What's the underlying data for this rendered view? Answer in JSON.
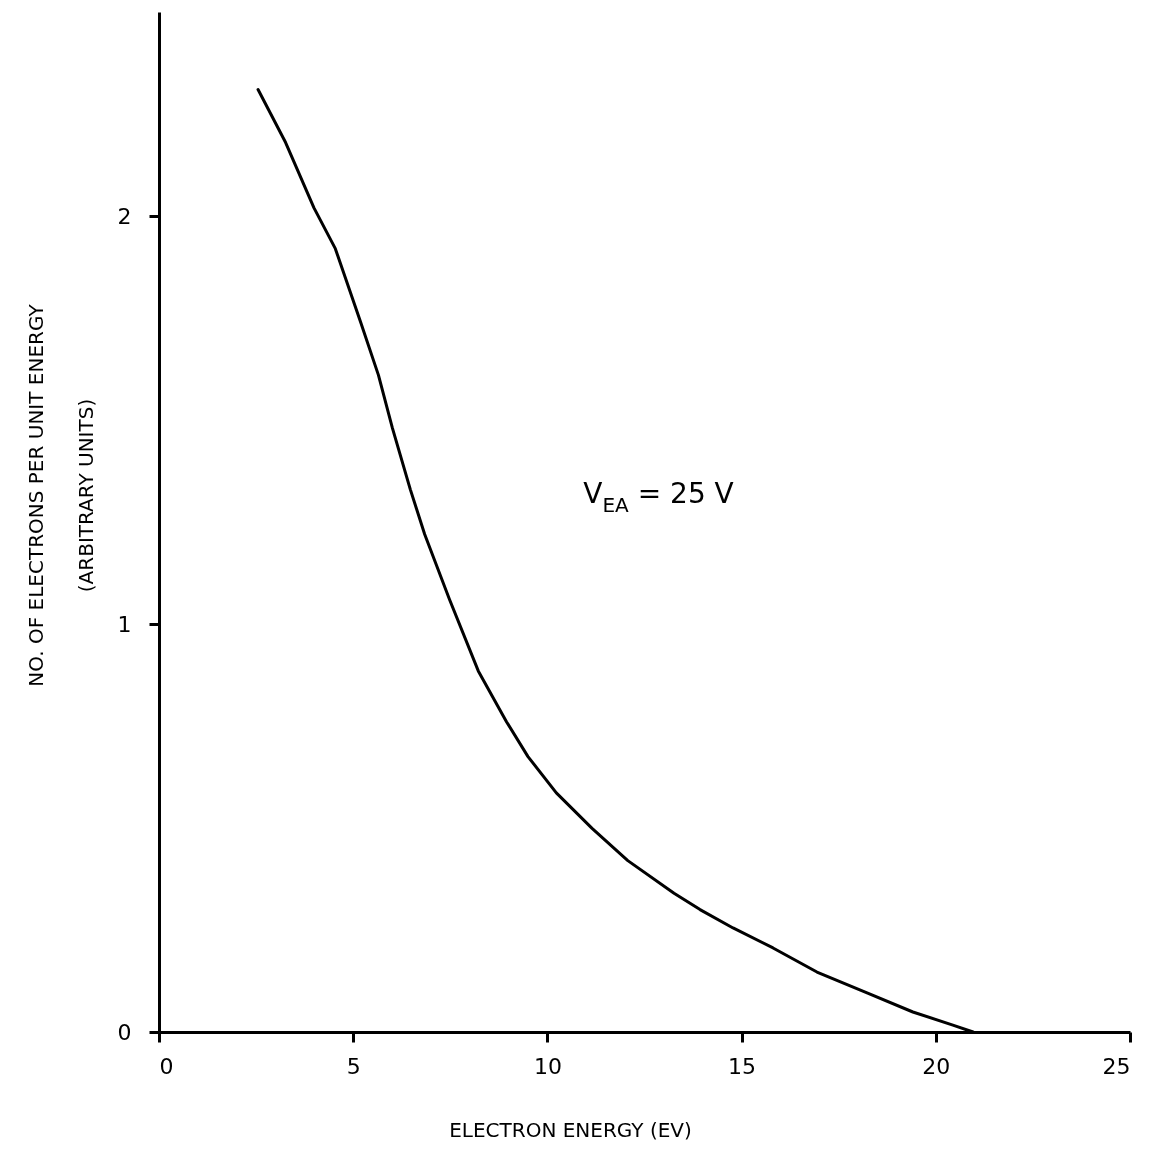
{
  "chart_data": {
    "type": "line",
    "xlabel": "ELECTRON ENERGY (EV)",
    "ylabel": "NO. OF ELECTRONS PER UNIT ENERGY\n(ARBITRARY UNITS)",
    "annotations": [
      "V$_{EA}$ = 25 V"
    ],
    "x": [
      2.55,
      3.26,
      3.99,
      4.54,
      5.19,
      5.65,
      6.01,
      6.47,
      6.84,
      7.48,
      8.22,
      8.95,
      9.5,
      10.23,
      11.15,
      12.07,
      13.26,
      13.93,
      14.78,
      15.81,
      16.94,
      18.23,
      19.41,
      20.44,
      20.96
    ],
    "values": [
      2.31,
      2.18,
      2.02,
      1.92,
      1.74,
      1.61,
      1.48,
      1.33,
      1.22,
      1.06,
      0.885,
      0.76,
      0.675,
      0.586,
      0.499,
      0.42,
      0.34,
      0.3,
      0.255,
      0.206,
      0.147,
      0.096,
      0.049,
      0.017,
      0
    ],
    "color": "#000000",
    "xlim": [
      0,
      25
    ],
    "xticks": [
      0,
      5,
      10,
      15,
      20,
      25
    ],
    "ylim": [
      0,
      2.5
    ],
    "yticks": [
      0,
      1,
      2
    ],
    "grid": false
  }
}
